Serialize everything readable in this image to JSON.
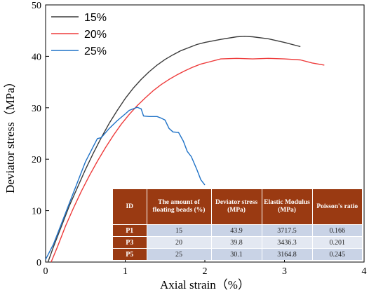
{
  "chart_data": {
    "type": "line",
    "xlabel": "Axial strain（%）",
    "ylabel": "Deviator stress（MPa）",
    "xlim": [
      0,
      4
    ],
    "ylim": [
      0,
      50
    ],
    "x_ticks": [
      "0",
      "1",
      "2",
      "3",
      "4"
    ],
    "y_ticks": [
      "0",
      "10",
      "20",
      "30",
      "40",
      "50"
    ],
    "grid": false,
    "legend_position": "top-left",
    "series": [
      {
        "name": "15%",
        "color": "#3b3b3b",
        "points": [
          [
            0.03,
            0
          ],
          [
            0.1,
            3
          ],
          [
            0.2,
            7
          ],
          [
            0.3,
            11
          ],
          [
            0.4,
            14.5
          ],
          [
            0.5,
            18
          ],
          [
            0.6,
            21.2
          ],
          [
            0.7,
            24.2
          ],
          [
            0.8,
            27
          ],
          [
            0.9,
            29.5
          ],
          [
            1.0,
            31.8
          ],
          [
            1.1,
            33.8
          ],
          [
            1.2,
            35.5
          ],
          [
            1.3,
            37
          ],
          [
            1.4,
            38.3
          ],
          [
            1.5,
            39.4
          ],
          [
            1.6,
            40.3
          ],
          [
            1.7,
            41.1
          ],
          [
            1.8,
            41.7
          ],
          [
            1.9,
            42.3
          ],
          [
            2.0,
            42.7
          ],
          [
            2.2,
            43.3
          ],
          [
            2.4,
            43.8
          ],
          [
            2.5,
            43.9
          ],
          [
            2.6,
            43.8
          ],
          [
            2.8,
            43.4
          ],
          [
            3.0,
            42.7
          ],
          [
            3.2,
            41.9
          ]
        ]
      },
      {
        "name": "20%",
        "color": "#ee3b3b",
        "points": [
          [
            0.07,
            0
          ],
          [
            0.15,
            3
          ],
          [
            0.25,
            7
          ],
          [
            0.35,
            10.5
          ],
          [
            0.45,
            13.8
          ],
          [
            0.55,
            16.8
          ],
          [
            0.65,
            19.6
          ],
          [
            0.75,
            22.2
          ],
          [
            0.85,
            24.6
          ],
          [
            0.95,
            26.8
          ],
          [
            1.05,
            28.7
          ],
          [
            1.15,
            30.4
          ],
          [
            1.25,
            31.9
          ],
          [
            1.35,
            33.3
          ],
          [
            1.45,
            34.5
          ],
          [
            1.55,
            35.5
          ],
          [
            1.65,
            36.4
          ],
          [
            1.75,
            37.2
          ],
          [
            1.85,
            37.9
          ],
          [
            1.95,
            38.5
          ],
          [
            2.05,
            38.9
          ],
          [
            2.2,
            39.5
          ],
          [
            2.4,
            39.6
          ],
          [
            2.6,
            39.5
          ],
          [
            2.8,
            39.6
          ],
          [
            3.0,
            39.5
          ],
          [
            3.2,
            39.3
          ],
          [
            3.35,
            38.7
          ],
          [
            3.5,
            38.3
          ]
        ]
      },
      {
        "name": "25%",
        "color": "#1f72c7",
        "points": [
          [
            0.0,
            0.5
          ],
          [
            0.1,
            3.5
          ],
          [
            0.2,
            7.5
          ],
          [
            0.3,
            11.5
          ],
          [
            0.4,
            15.5
          ],
          [
            0.5,
            19.5
          ],
          [
            0.6,
            22.5
          ],
          [
            0.65,
            24
          ],
          [
            0.7,
            24.2
          ],
          [
            0.8,
            26
          ],
          [
            0.9,
            27.5
          ],
          [
            1.0,
            28.8
          ],
          [
            1.05,
            29.5
          ],
          [
            1.1,
            29.8
          ],
          [
            1.15,
            30.1
          ],
          [
            1.2,
            29.8
          ],
          [
            1.23,
            28.4
          ],
          [
            1.3,
            28.3
          ],
          [
            1.4,
            28.3
          ],
          [
            1.45,
            28
          ],
          [
            1.5,
            27.6
          ],
          [
            1.55,
            26
          ],
          [
            1.6,
            25.3
          ],
          [
            1.67,
            25.2
          ],
          [
            1.73,
            23.5
          ],
          [
            1.78,
            21.5
          ],
          [
            1.83,
            20.5
          ],
          [
            1.9,
            18
          ],
          [
            1.95,
            16
          ],
          [
            2.0,
            15
          ]
        ]
      }
    ]
  },
  "table": {
    "headers": [
      "ID",
      "The amount of floating beads (%)",
      "Deviator stress (MPa)",
      "Elastic Modulus (MPa)",
      "Poisson's ratio"
    ],
    "rows": [
      [
        "P1",
        "15",
        "43.9",
        "3717.5",
        "0.166"
      ],
      [
        "P3",
        "20",
        "39.8",
        "3436.3",
        "0.201"
      ],
      [
        "P5",
        "25",
        "30.1",
        "3164.8",
        "0.245"
      ]
    ]
  }
}
